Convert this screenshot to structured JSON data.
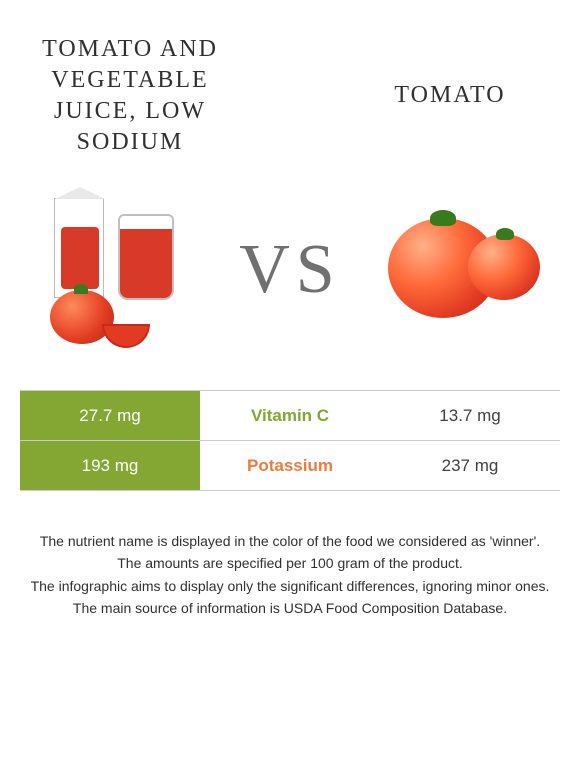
{
  "header": {
    "left_title": "TOMATO AND VEGETABLE JUICE, LOW SODIUM",
    "right_title": "TOMATO",
    "vs_label": "VS"
  },
  "colors": {
    "left_food": "#84a733",
    "right_food": "#ed7b3f",
    "row_border": "#cccccc",
    "body_text": "#303030",
    "vs_text": "#707070",
    "background": "#ffffff"
  },
  "table": {
    "rows": [
      {
        "nutrient": "Vitamin C",
        "left_value": "27.7 mg",
        "right_value": "13.7 mg",
        "winner": "left"
      },
      {
        "nutrient": "Potassium",
        "left_value": "193 mg",
        "right_value": "237 mg",
        "winner": "right"
      }
    ]
  },
  "footnotes": [
    "The nutrient name is displayed in the color of the food we considered as 'winner'.",
    "The amounts are specified per 100 gram of the product.",
    "The infographic aims to display only the significant differences, ignoring minor ones.",
    "The main source of information is USDA Food Composition Database."
  ],
  "typography": {
    "title_fontsize": 24,
    "title_letterspacing": 2,
    "vs_fontsize": 70,
    "cell_fontsize": 17,
    "footnote_fontsize": 14
  }
}
